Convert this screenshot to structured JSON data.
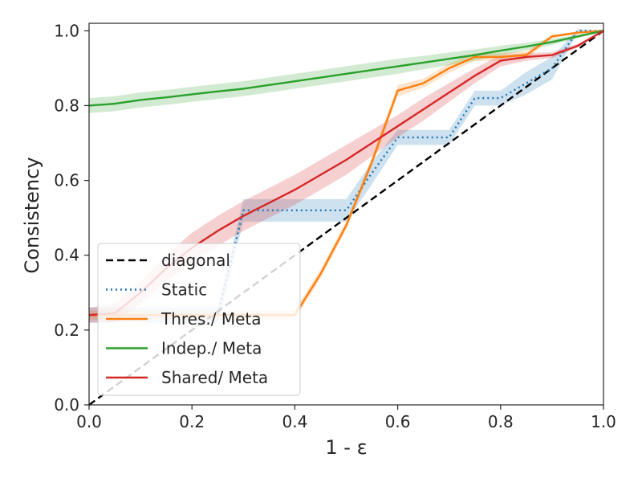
{
  "chart_data": {
    "type": "line",
    "title": "",
    "xlabel": "1 - ε",
    "ylabel": "Consistency",
    "xlim": [
      0,
      1
    ],
    "ylim": [
      0,
      1.02
    ],
    "xticks": [
      0.0,
      0.2,
      0.4,
      0.6,
      0.8,
      1.0
    ],
    "yticks": [
      0.0,
      0.2,
      0.4,
      0.6,
      0.8,
      1.0
    ],
    "xtick_labels": [
      "0.0",
      "0.2",
      "0.4",
      "0.6",
      "0.8",
      "1.0"
    ],
    "ytick_labels": [
      "0.0",
      "0.2",
      "0.4",
      "0.6",
      "0.8",
      "1.0"
    ],
    "legend_position": "lower-left",
    "series": [
      {
        "name": "diagonal",
        "color": "#000000",
        "style": "dashed",
        "x": [
          0,
          1
        ],
        "y": [
          0,
          1
        ]
      },
      {
        "name": "Static",
        "color": "#1f77b4",
        "style": "dotted",
        "x": [
          0,
          0.05,
          0.1,
          0.15,
          0.2,
          0.25,
          0.3,
          0.35,
          0.4,
          0.45,
          0.5,
          0.55,
          0.6,
          0.65,
          0.7,
          0.75,
          0.8,
          0.85,
          0.9,
          0.95,
          1.0
        ],
        "y": [
          0.24,
          0.24,
          0.24,
          0.24,
          0.24,
          0.24,
          0.52,
          0.52,
          0.52,
          0.52,
          0.52,
          0.62,
          0.715,
          0.715,
          0.715,
          0.82,
          0.82,
          0.86,
          0.9,
          1.0,
          1.0
        ],
        "band": [
          0.02,
          0.02,
          0.02,
          0.02,
          0.02,
          0.02,
          0.03,
          0.03,
          0.03,
          0.03,
          0.03,
          0.03,
          0.02,
          0.02,
          0.02,
          0.02,
          0.02,
          0.03,
          0.03,
          0.005,
          0.0
        ]
      },
      {
        "name": "Thres./ Meta",
        "color": "#ff7f0e",
        "style": "solid",
        "x": [
          0,
          0.05,
          0.1,
          0.15,
          0.2,
          0.25,
          0.3,
          0.35,
          0.4,
          0.45,
          0.5,
          0.55,
          0.6,
          0.65,
          0.7,
          0.75,
          0.8,
          0.85,
          0.9,
          0.95,
          1.0
        ],
        "y": [
          0.24,
          0.24,
          0.24,
          0.24,
          0.24,
          0.24,
          0.24,
          0.24,
          0.24,
          0.35,
          0.48,
          0.65,
          0.84,
          0.86,
          0.9,
          0.93,
          0.93,
          0.935,
          0.985,
          0.995,
          1.0
        ],
        "band": [
          0.012,
          0.012,
          0.012,
          0.012,
          0.012,
          0.012,
          0.012,
          0.012,
          0.012,
          0.012,
          0.012,
          0.012,
          0.015,
          0.012,
          0.012,
          0.01,
          0.01,
          0.01,
          0.005,
          0.003,
          0.0
        ]
      },
      {
        "name": "Indep./ Meta",
        "color": "#2ca02c",
        "style": "solid",
        "x": [
          0,
          0.05,
          0.1,
          0.15,
          0.2,
          0.25,
          0.3,
          0.35,
          0.4,
          0.45,
          0.5,
          0.55,
          0.6,
          0.65,
          0.7,
          0.75,
          0.8,
          0.85,
          0.9,
          0.95,
          1.0
        ],
        "y": [
          0.8,
          0.805,
          0.815,
          0.822,
          0.83,
          0.838,
          0.845,
          0.855,
          0.865,
          0.875,
          0.885,
          0.895,
          0.905,
          0.915,
          0.925,
          0.935,
          0.947,
          0.958,
          0.97,
          0.985,
          1.0
        ],
        "band": [
          0.02,
          0.02,
          0.02,
          0.02,
          0.02,
          0.02,
          0.02,
          0.02,
          0.02,
          0.02,
          0.02,
          0.02,
          0.02,
          0.018,
          0.017,
          0.015,
          0.013,
          0.01,
          0.008,
          0.005,
          0.0
        ]
      },
      {
        "name": "Shared/ Meta",
        "color": "#d62728",
        "style": "solid",
        "x": [
          0,
          0.05,
          0.1,
          0.15,
          0.2,
          0.25,
          0.3,
          0.35,
          0.4,
          0.45,
          0.5,
          0.55,
          0.6,
          0.65,
          0.7,
          0.75,
          0.8,
          0.85,
          0.9,
          0.95,
          1.0
        ],
        "y": [
          0.24,
          0.245,
          0.3,
          0.365,
          0.42,
          0.465,
          0.505,
          0.54,
          0.575,
          0.615,
          0.655,
          0.7,
          0.745,
          0.79,
          0.835,
          0.88,
          0.92,
          0.93,
          0.935,
          0.96,
          1.0
        ],
        "band": [
          0.02,
          0.025,
          0.03,
          0.035,
          0.04,
          0.04,
          0.04,
          0.04,
          0.04,
          0.04,
          0.04,
          0.035,
          0.03,
          0.03,
          0.025,
          0.02,
          0.015,
          0.01,
          0.008,
          0.005,
          0.0
        ]
      }
    ]
  }
}
